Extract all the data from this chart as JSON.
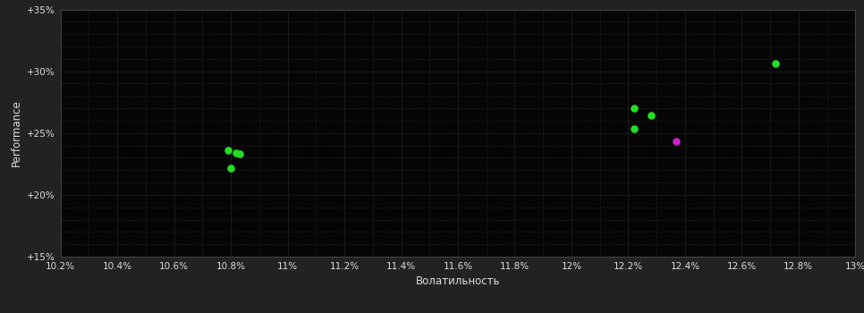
{
  "background_color": "#222222",
  "plot_bg_color": "#050505",
  "grid_color": "#444444",
  "text_color": "#dddddd",
  "xlabel": "Волатильность",
  "ylabel": "Performance",
  "xlim": [
    0.102,
    0.13
  ],
  "ylim": [
    0.15,
    0.35
  ],
  "xticks": [
    0.102,
    0.104,
    0.106,
    0.108,
    0.11,
    0.112,
    0.114,
    0.116,
    0.118,
    0.12,
    0.122,
    0.124,
    0.126,
    0.128,
    0.13
  ],
  "yticks": [
    0.15,
    0.2,
    0.25,
    0.3,
    0.35
  ],
  "ytick_labels": [
    "+15%",
    "+20%",
    "+25%",
    "+30%",
    "+35%"
  ],
  "xtick_labels": [
    "10.2%",
    "10.4%",
    "10.6%",
    "10.8%",
    "11%",
    "11.2%",
    "11.4%",
    "11.6%",
    "11.8%",
    "12%",
    "12.2%",
    "12.4%",
    "12.6%",
    "12.8%",
    "13%"
  ],
  "green_points": [
    [
      0.1079,
      0.236
    ],
    [
      0.1082,
      0.234
    ],
    [
      0.1083,
      0.233
    ],
    [
      0.108,
      0.2215
    ],
    [
      0.1222,
      0.27
    ],
    [
      0.1228,
      0.2645
    ],
    [
      0.1222,
      0.2535
    ],
    [
      0.1272,
      0.3065
    ]
  ],
  "purple_points": [
    [
      0.1237,
      0.2435
    ]
  ],
  "green_color": "#22dd22",
  "purple_color": "#cc22cc",
  "marker_size": 38
}
